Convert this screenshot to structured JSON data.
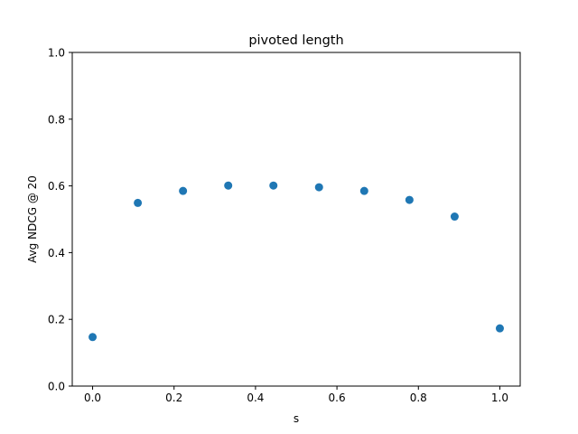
{
  "chart_data": {
    "type": "scatter",
    "title": "pivoted length",
    "xlabel": "s",
    "ylabel": "Avg NDCG @ 20",
    "xlim": [
      -0.05,
      1.05
    ],
    "ylim": [
      0.0,
      1.0
    ],
    "xticks": [
      0.0,
      0.2,
      0.4,
      0.6,
      0.8,
      1.0
    ],
    "xtick_labels": [
      "0.0",
      "0.2",
      "0.4",
      "0.6",
      "0.8",
      "1.0"
    ],
    "yticks": [
      0.0,
      0.2,
      0.4,
      0.6,
      0.8,
      1.0
    ],
    "ytick_labels": [
      "0.0",
      "0.2",
      "0.4",
      "0.6",
      "0.8",
      "1.0"
    ],
    "grid": false,
    "marker_color": "#1f77b4",
    "x": [
      0.0,
      0.111,
      0.222,
      0.333,
      0.444,
      0.556,
      0.667,
      0.778,
      0.889,
      1.0
    ],
    "y": [
      0.147,
      0.549,
      0.585,
      0.601,
      0.601,
      0.596,
      0.585,
      0.558,
      0.508,
      0.173
    ]
  }
}
